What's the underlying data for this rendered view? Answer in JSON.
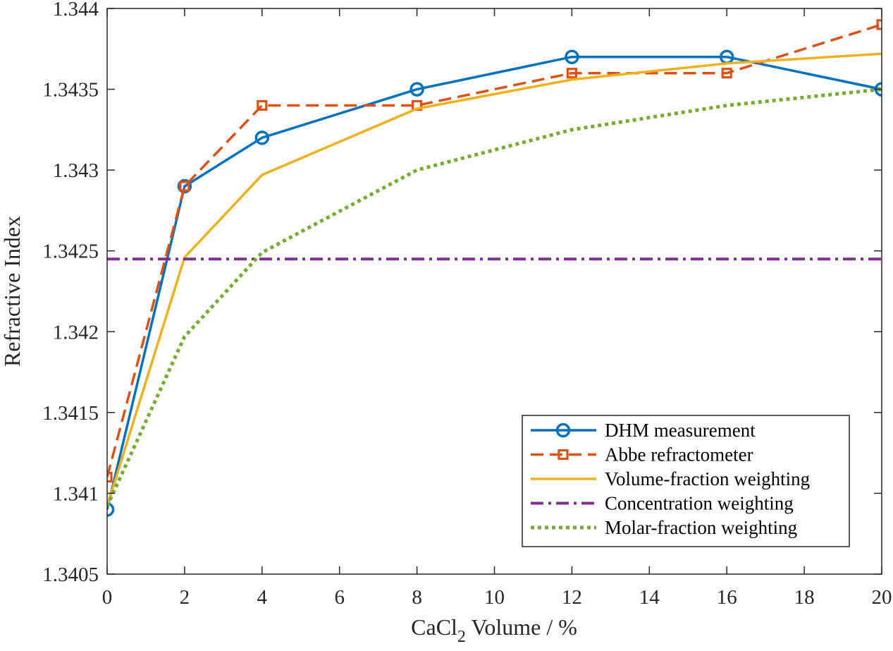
{
  "chart_data": {
    "type": "line",
    "title": "",
    "xlabel": "CaCl",
    "xlabel_subscript": "2",
    "xlabel_suffix": " Volume / %",
    "ylabel": "Refractive Index",
    "xlim": [
      0,
      20
    ],
    "ylim": [
      1.3405,
      1.344
    ],
    "xticks": [
      0,
      2,
      4,
      6,
      8,
      10,
      12,
      14,
      16,
      18,
      20
    ],
    "xtick_labels": [
      "0",
      "2",
      "4",
      "6",
      "8",
      "10",
      "12",
      "14",
      "16",
      "18",
      "20"
    ],
    "yticks": [
      1.3405,
      1.341,
      1.3415,
      1.342,
      1.3425,
      1.343,
      1.3435,
      1.344
    ],
    "ytick_labels": [
      "1.3405",
      "1.341",
      "1.3415",
      "1.342",
      "1.3425",
      "1.343",
      "1.3435",
      "1.344"
    ],
    "grid": false,
    "legend_position": "bottom-right",
    "series": [
      {
        "name": "DHM measurement",
        "color": "#0072BD",
        "line": "solid",
        "marker": "circle",
        "x": [
          0,
          2,
          4,
          8,
          12,
          16,
          20
        ],
        "y": [
          1.3409,
          1.3429,
          1.3432,
          1.3435,
          1.3437,
          1.3437,
          1.3435
        ]
      },
      {
        "name": "Abbe refractometer",
        "color": "#D95319",
        "line": "dashed",
        "marker": "square",
        "x": [
          0,
          2,
          4,
          8,
          12,
          16,
          20
        ],
        "y": [
          1.3411,
          1.3429,
          1.3434,
          1.3434,
          1.3436,
          1.3436,
          1.3439
        ]
      },
      {
        "name": "Volume-fraction weighting",
        "color": "#EDB120",
        "line": "solid",
        "marker": "none",
        "x": [
          0,
          2,
          4,
          8,
          12,
          16,
          20
        ],
        "y": [
          1.34092,
          1.34246,
          1.34297,
          1.34338,
          1.34356,
          1.34366,
          1.34372
        ]
      },
      {
        "name": "Concentration weighting",
        "color": "#7E2F8E",
        "line": "dashdot",
        "marker": "none",
        "x": [
          0,
          20
        ],
        "y": [
          1.34245,
          1.34245
        ]
      },
      {
        "name": "Molar-fraction weighting",
        "color": "#77AC30",
        "line": "dotted",
        "marker": "none",
        "x": [
          0,
          2,
          4,
          8,
          12,
          16,
          20
        ],
        "y": [
          1.34092,
          1.34197,
          1.34249,
          1.343,
          1.34325,
          1.3434,
          1.3435
        ]
      }
    ]
  }
}
